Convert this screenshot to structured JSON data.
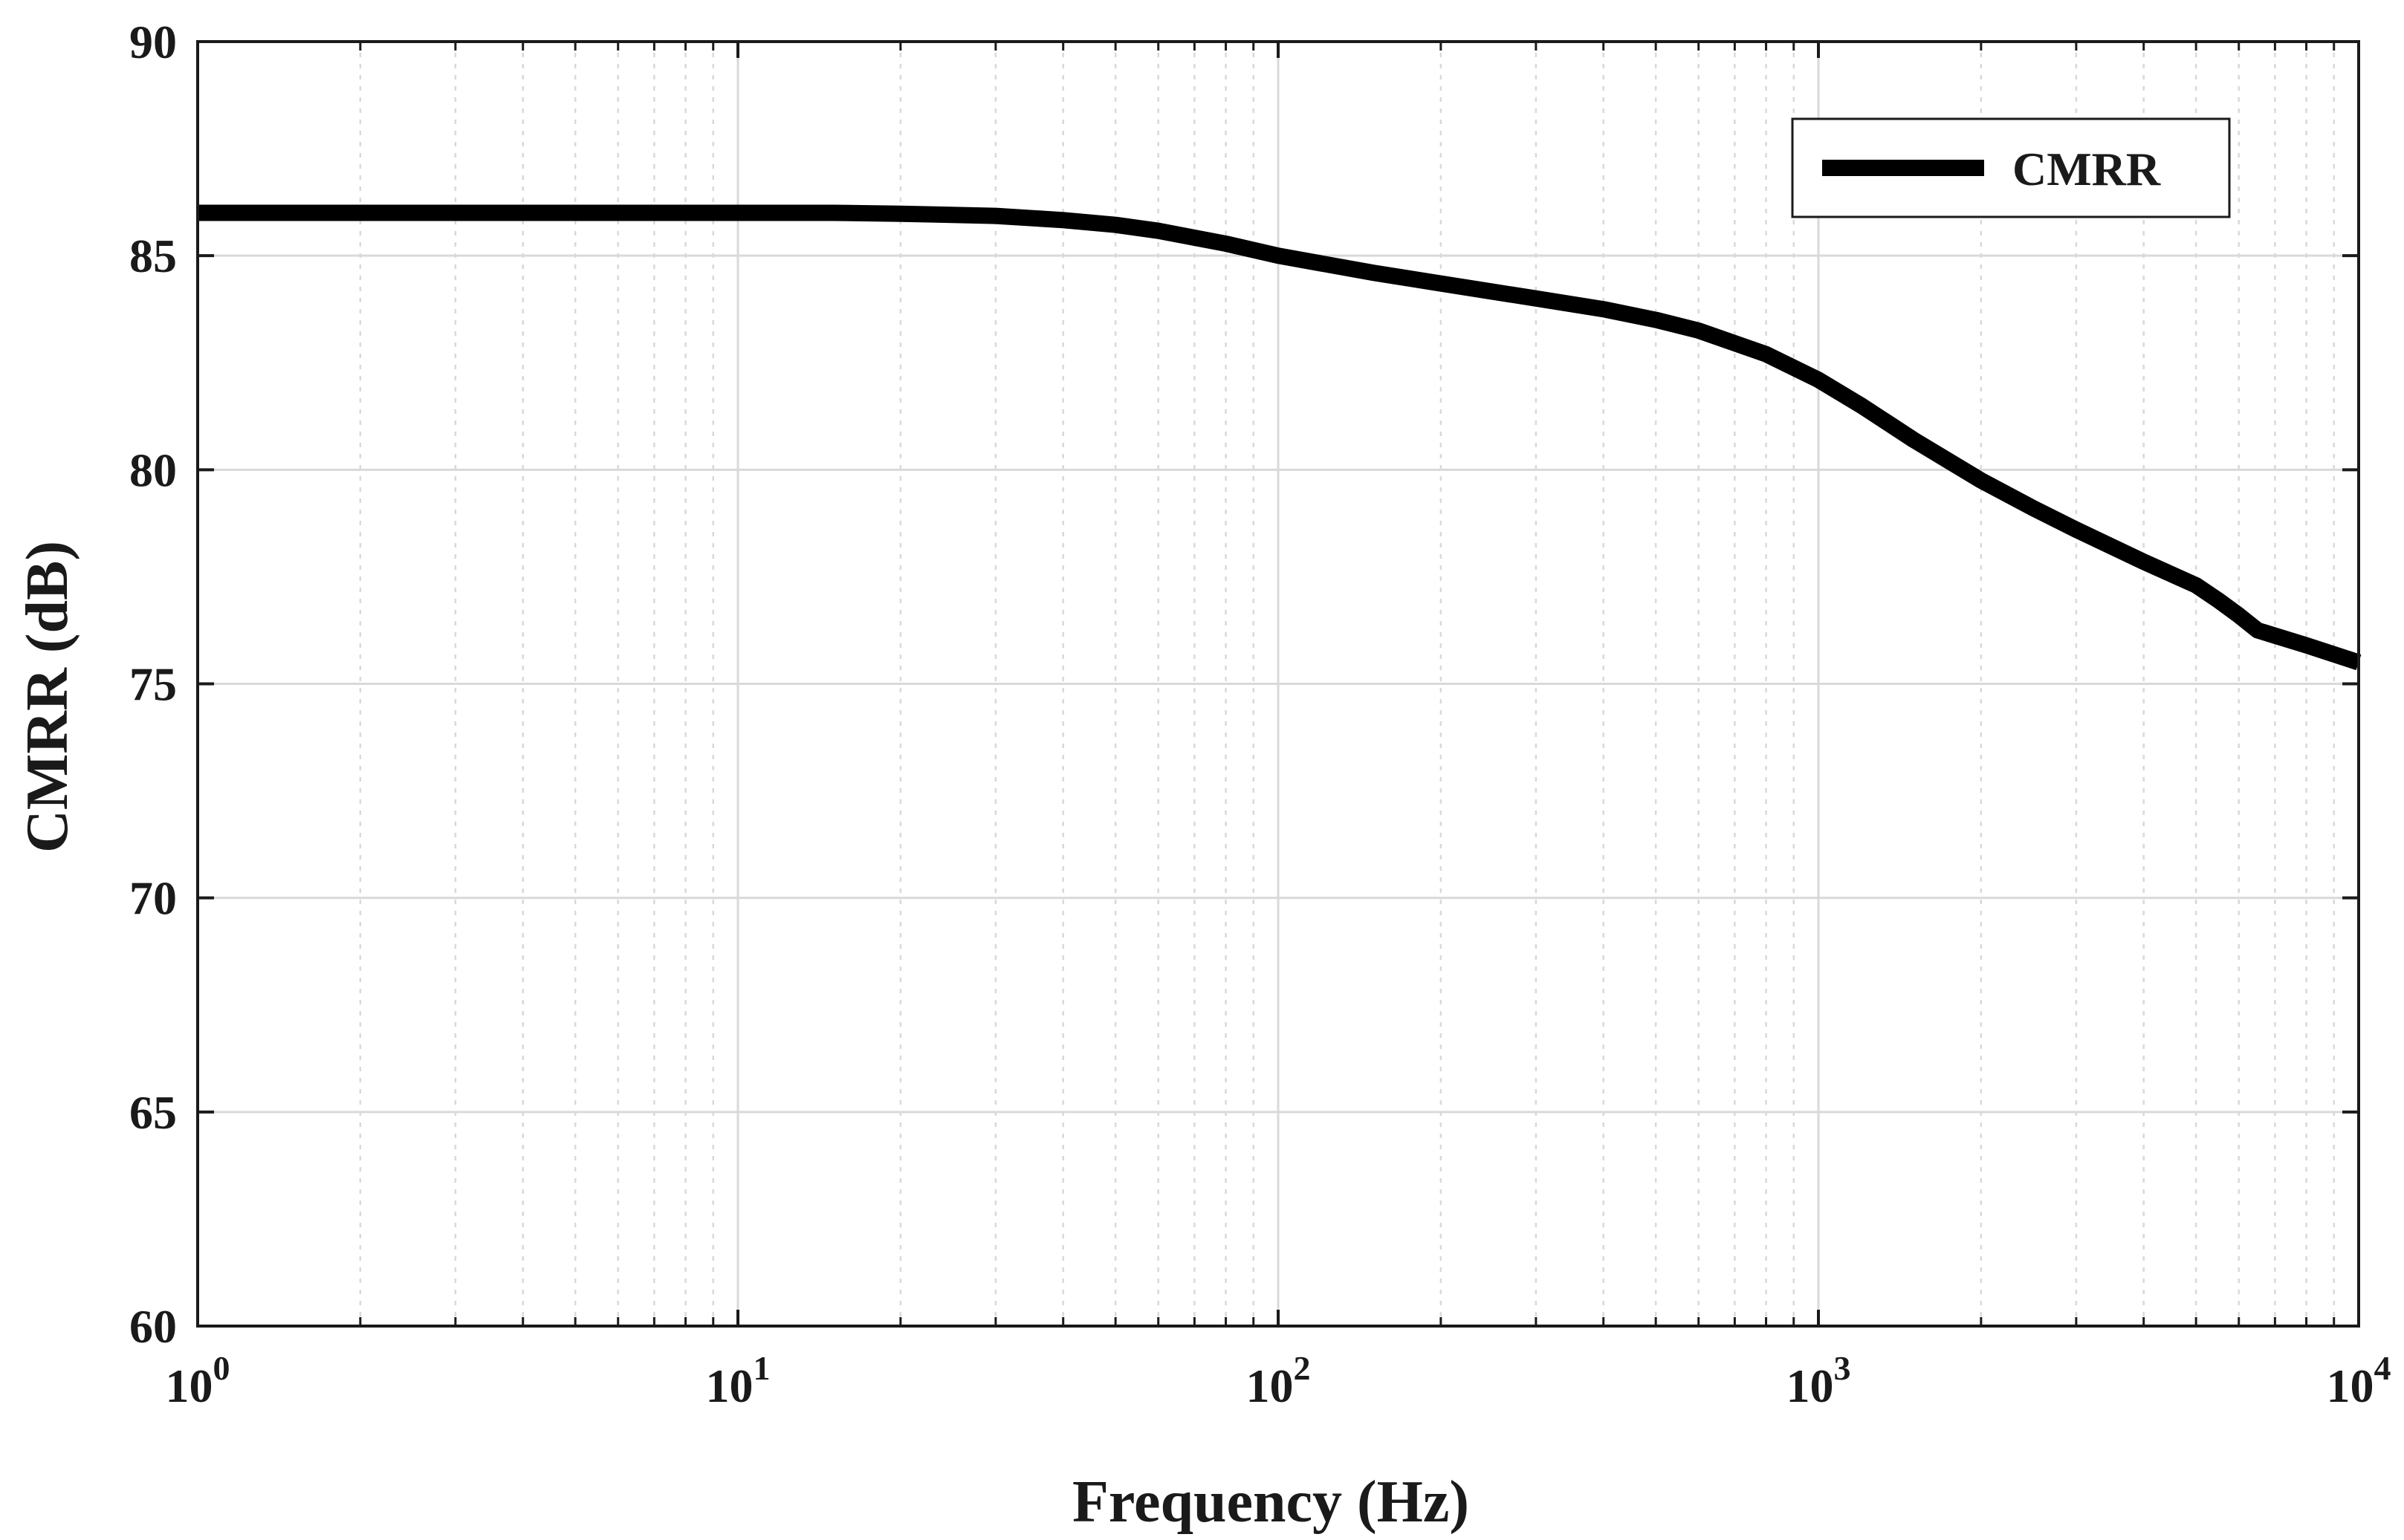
{
  "chart_data": {
    "type": "line",
    "xscale": "log",
    "xlim": [
      1,
      10000
    ],
    "ylim": [
      60,
      90
    ],
    "grid": true,
    "legend_position": "top-right",
    "xlabel": "Frequency (Hz)",
    "ylabel": "CMRR (dB)",
    "x_ticks": [
      {
        "value": 1,
        "base": "10",
        "exp": "0"
      },
      {
        "value": 10,
        "base": "10",
        "exp": "1"
      },
      {
        "value": 100,
        "base": "10",
        "exp": "2"
      },
      {
        "value": 1000,
        "base": "10",
        "exp": "3"
      },
      {
        "value": 10000,
        "base": "10",
        "exp": "4"
      }
    ],
    "y_ticks": [
      {
        "value": 60,
        "label": "60"
      },
      {
        "value": 65,
        "label": "65"
      },
      {
        "value": 70,
        "label": "70"
      },
      {
        "value": 75,
        "label": "75"
      },
      {
        "value": 80,
        "label": "80"
      },
      {
        "value": 85,
        "label": "85"
      },
      {
        "value": 90,
        "label": "90"
      }
    ],
    "series": [
      {
        "name": "CMRR",
        "color": "#000000",
        "x": [
          1,
          2,
          5,
          10,
          15,
          20,
          30,
          40,
          50,
          60,
          80,
          100,
          150,
          200,
          300,
          400,
          500,
          600,
          800,
          1000,
          1200,
          1500,
          2000,
          2500,
          3000,
          4000,
          5000,
          5500,
          6000,
          6500,
          8000,
          10000
        ],
        "y": [
          86.0,
          86.0,
          86.0,
          86.0,
          86.0,
          85.98,
          85.93,
          85.83,
          85.72,
          85.58,
          85.28,
          85.0,
          84.6,
          84.35,
          84.0,
          83.75,
          83.5,
          83.25,
          82.7,
          82.1,
          81.5,
          80.7,
          79.75,
          79.1,
          78.6,
          77.85,
          77.3,
          76.95,
          76.6,
          76.25,
          75.9,
          75.5
        ]
      }
    ]
  },
  "legend": {
    "label": "CMRR"
  },
  "colors": {
    "line": "#000000",
    "grid": "#d9d9d9",
    "axis": "#1a1a1a"
  }
}
